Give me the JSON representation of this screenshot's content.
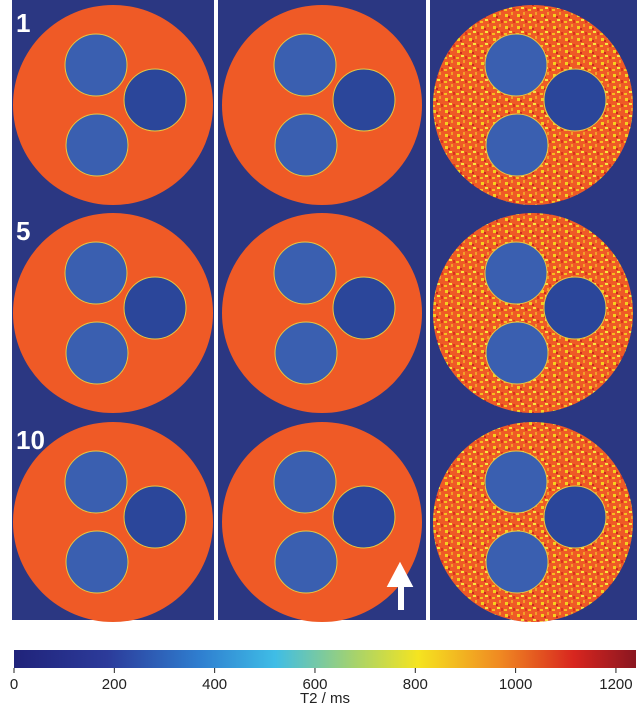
{
  "figure": {
    "row_labels": [
      "1",
      "5",
      "10"
    ],
    "colorbar": {
      "label": "T2 / ms",
      "lim": [
        0,
        1240
      ],
      "ticks": [
        0,
        200,
        400,
        600,
        800,
        1000,
        1200
      ]
    }
  }
}
